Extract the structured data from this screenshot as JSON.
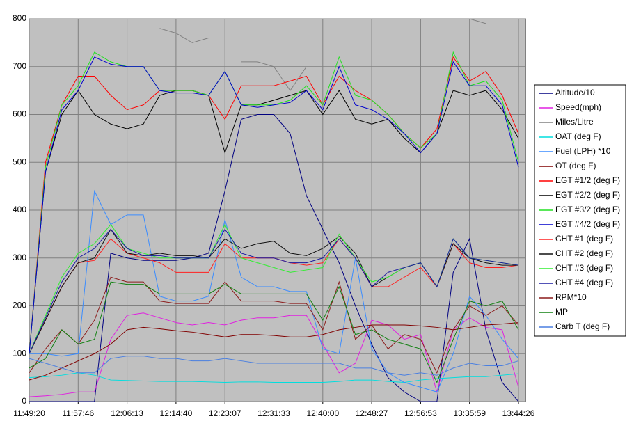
{
  "chart_data": {
    "type": "line",
    "categories": [
      "11:49:20",
      null,
      null,
      "11:57:46",
      null,
      null,
      "12:06:13",
      null,
      null,
      "12:14:40",
      null,
      null,
      "12:23:07",
      null,
      null,
      "12:31:33",
      null,
      null,
      "12:40:00",
      null,
      null,
      "12:48:27",
      null,
      null,
      "12:56:53",
      null,
      null,
      "13:35:59",
      null,
      null,
      "13:44:26"
    ],
    "ylim": [
      0,
      800
    ],
    "yticks": [
      0,
      100,
      200,
      300,
      400,
      500,
      600,
      700,
      800
    ],
    "grid": true,
    "legend": "right",
    "series": [
      {
        "name": "Altitude/10",
        "color": "#000080",
        "values": [
          0,
          0,
          0,
          0,
          0,
          310,
          300,
          295,
          295,
          295,
          300,
          310,
          440,
          590,
          600,
          600,
          560,
          430,
          360,
          290,
          200,
          120,
          50,
          20,
          0,
          0,
          270,
          340,
          150,
          40,
          0
        ]
      },
      {
        "name": "Speed(mph)",
        "color": "#e020e0",
        "values": [
          10,
          12,
          15,
          20,
          20,
          130,
          180,
          185,
          175,
          165,
          160,
          165,
          160,
          170,
          175,
          175,
          180,
          180,
          120,
          60,
          80,
          170,
          160,
          130,
          140,
          20,
          150,
          175,
          155,
          150,
          30
        ]
      },
      {
        "name": "Miles/Litre",
        "color": "#808080",
        "values": [
          null,
          null,
          null,
          null,
          null,
          null,
          null,
          null,
          780,
          770,
          750,
          760,
          null,
          710,
          710,
          700,
          650,
          700,
          null,
          null,
          null,
          null,
          null,
          null,
          null,
          null,
          null,
          800,
          790,
          null,
          null
        ]
      },
      {
        "name": "OAT (deg F)",
        "color": "#00dede",
        "values": [
          50,
          52,
          55,
          60,
          55,
          45,
          44,
          43,
          42,
          42,
          42,
          41,
          40,
          41,
          41,
          40,
          40,
          40,
          40,
          42,
          45,
          45,
          42,
          40,
          45,
          48,
          50,
          52,
          52,
          55,
          58
        ]
      },
      {
        "name": "Fuel (LPH) *10",
        "color": "#3a8cff",
        "values": [
          100,
          100,
          95,
          100,
          440,
          370,
          390,
          390,
          220,
          210,
          210,
          220,
          380,
          260,
          240,
          240,
          230,
          230,
          110,
          100,
          300,
          110,
          60,
          40,
          30,
          20,
          100,
          220,
          180,
          130,
          90
        ]
      },
      {
        "name": "OT (deg F)",
        "color": "#800000",
        "values": [
          45,
          55,
          70,
          85,
          100,
          120,
          150,
          155,
          152,
          148,
          145,
          140,
          135,
          140,
          140,
          138,
          135,
          135,
          140,
          150,
          155,
          160,
          160,
          160,
          158,
          155,
          150,
          155,
          160,
          162,
          165
        ]
      },
      {
        "name": "EGT #1/2 (deg F)",
        "color": "#ff0000",
        "values": [
          100,
          500,
          620,
          680,
          680,
          640,
          610,
          620,
          650,
          650,
          650,
          640,
          590,
          660,
          660,
          660,
          670,
          680,
          620,
          680,
          650,
          630,
          600,
          560,
          530,
          570,
          720,
          670,
          690,
          640,
          560
        ]
      },
      {
        "name": "EGT #2/2 (deg F)",
        "color": "#000000",
        "values": [
          100,
          480,
          600,
          650,
          600,
          580,
          570,
          580,
          640,
          650,
          650,
          640,
          520,
          620,
          620,
          630,
          640,
          650,
          600,
          650,
          590,
          580,
          590,
          550,
          520,
          560,
          650,
          640,
          650,
          610,
          550
        ]
      },
      {
        "name": "EGT #3/2 (deg F)",
        "color": "#22e022",
        "values": [
          100,
          490,
          620,
          660,
          730,
          710,
          700,
          700,
          650,
          650,
          650,
          640,
          690,
          620,
          620,
          620,
          630,
          660,
          620,
          720,
          640,
          630,
          600,
          560,
          530,
          560,
          730,
          660,
          670,
          630,
          500
        ]
      },
      {
        "name": "EGT #4/2 (deg F)",
        "color": "#0000cc",
        "values": [
          100,
          480,
          610,
          650,
          720,
          705,
          700,
          700,
          650,
          645,
          645,
          640,
          690,
          620,
          615,
          620,
          625,
          650,
          610,
          700,
          620,
          610,
          590,
          560,
          520,
          560,
          710,
          660,
          660,
          620,
          490
        ]
      },
      {
        "name": "CHT #1 (deg F)",
        "color": "#ff2020",
        "values": [
          100,
          170,
          240,
          290,
          295,
          340,
          310,
          300,
          290,
          270,
          270,
          270,
          330,
          300,
          300,
          300,
          290,
          285,
          290,
          340,
          300,
          240,
          240,
          260,
          280,
          240,
          330,
          290,
          280,
          280,
          285
        ]
      },
      {
        "name": "CHT #2 (deg F)",
        "color": "#101010",
        "values": [
          100,
          170,
          240,
          290,
          300,
          360,
          310,
          305,
          310,
          305,
          305,
          300,
          340,
          320,
          330,
          335,
          310,
          305,
          320,
          345,
          310,
          240,
          260,
          280,
          290,
          240,
          330,
          300,
          290,
          285,
          285
        ]
      },
      {
        "name": "CHT #3 (deg F)",
        "color": "#30ee30",
        "values": [
          100,
          180,
          260,
          310,
          330,
          370,
          320,
          310,
          300,
          300,
          300,
          300,
          370,
          300,
          290,
          280,
          270,
          275,
          280,
          350,
          300,
          250,
          260,
          280,
          290,
          240,
          340,
          300,
          295,
          290,
          285
        ]
      },
      {
        "name": "CHT #4 (deg F)",
        "color": "#1a1aa0",
        "values": [
          100,
          175,
          250,
          300,
          320,
          360,
          320,
          305,
          305,
          300,
          300,
          300,
          360,
          310,
          300,
          300,
          290,
          290,
          300,
          340,
          300,
          240,
          270,
          280,
          290,
          240,
          340,
          300,
          295,
          290,
          285
        ]
      },
      {
        "name": "RPM*10",
        "color": "#8b1a1a",
        "values": [
          60,
          110,
          150,
          120,
          170,
          260,
          250,
          250,
          210,
          205,
          205,
          205,
          250,
          210,
          210,
          210,
          205,
          205,
          150,
          250,
          130,
          160,
          110,
          140,
          130,
          60,
          150,
          200,
          180,
          200,
          160
        ]
      },
      {
        "name": "MP",
        "color": "#108010",
        "values": [
          70,
          90,
          150,
          120,
          130,
          250,
          245,
          245,
          225,
          225,
          225,
          225,
          245,
          225,
          225,
          225,
          225,
          225,
          170,
          240,
          140,
          150,
          130,
          120,
          110,
          40,
          130,
          210,
          200,
          210,
          150
        ]
      },
      {
        "name": "Carb T (deg F)",
        "color": "#4a7fe0",
        "values": [
          90,
          80,
          70,
          60,
          60,
          90,
          95,
          95,
          90,
          90,
          85,
          85,
          90,
          85,
          80,
          80,
          80,
          80,
          80,
          80,
          70,
          70,
          60,
          55,
          60,
          55,
          70,
          80,
          75,
          75,
          85
        ]
      }
    ]
  }
}
